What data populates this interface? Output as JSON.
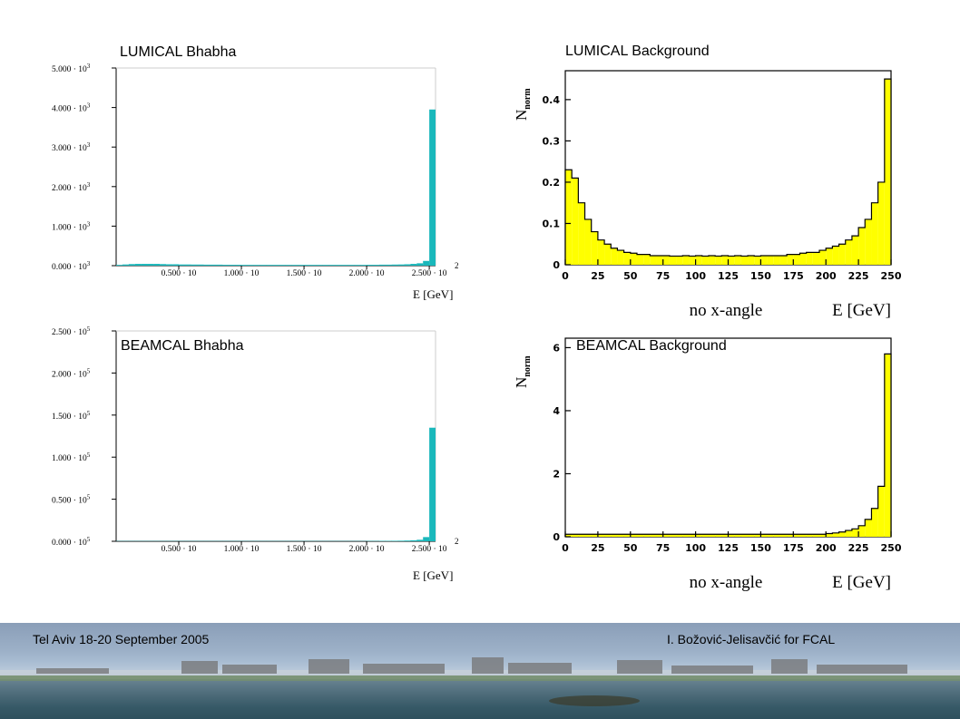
{
  "colors": {
    "cyan": "#1ab8bb",
    "yellow": "#ffff00"
  },
  "panels": {
    "lumical_bhabha": {
      "title": "LUMICAL Bhabha",
      "xunit": "E [GeV]"
    },
    "lumical_background": {
      "title": "LUMICAL Background"
    },
    "beamcal_bhabha": {
      "title": "BEAMCAL Bhabha",
      "xunit": "E [GeV]"
    },
    "beamcal_background": {
      "title": "BEAMCAL Background"
    }
  },
  "footer": {
    "left": "Tel Aviv 18-20 September 2005",
    "right": "I. Božović-Jelisavčić for FCAL"
  },
  "chart_data": [
    {
      "id": "lumical_bhabha",
      "type": "bar",
      "title": "LUMICAL Bhabha",
      "xlabel": "E [GeV]",
      "ylabel": "",
      "ylim": [
        0,
        5000
      ],
      "yticks": [
        0,
        1000,
        2000,
        3000,
        4000,
        5000
      ],
      "ytick_labels": [
        "0.000 · 10",
        "1.000 · 10",
        "2.000 · 10",
        "3.000 · 10",
        "4.000 · 10",
        "5.000 · 10"
      ],
      "ytick_exp": "3",
      "xlim": [
        0,
        255
      ],
      "xticks": [
        50,
        100,
        150,
        200,
        250
      ],
      "xtick_labels": [
        "0.500 · 10",
        "1.000 · 10",
        "1.500 · 10",
        "2.000 · 10",
        "2.500 · 10"
      ],
      "xtick_exp": "2",
      "bin_width": 5,
      "x": [
        0,
        5,
        10,
        15,
        20,
        25,
        30,
        35,
        40,
        45,
        50,
        55,
        60,
        65,
        70,
        75,
        80,
        85,
        90,
        95,
        100,
        105,
        110,
        115,
        120,
        125,
        130,
        135,
        140,
        145,
        150,
        155,
        160,
        165,
        170,
        175,
        180,
        185,
        190,
        195,
        200,
        205,
        210,
        215,
        220,
        225,
        230,
        235,
        240,
        245,
        250
      ],
      "values": [
        20,
        30,
        40,
        45,
        45,
        45,
        45,
        40,
        35,
        35,
        30,
        30,
        28,
        28,
        25,
        25,
        25,
        22,
        22,
        22,
        20,
        20,
        20,
        20,
        20,
        20,
        20,
        20,
        20,
        20,
        20,
        20,
        20,
        20,
        20,
        20,
        20,
        20,
        20,
        20,
        22,
        22,
        25,
        25,
        28,
        30,
        35,
        45,
        60,
        120,
        3950
      ]
    },
    {
      "id": "lumical_background",
      "type": "bar",
      "title": "LUMICAL Background",
      "ylabel": "N",
      "ylabel_sub": "norm",
      "xlabel": "E [GeV]",
      "annotation": "no x-angle",
      "ylim": [
        0,
        0.47
      ],
      "yticks": [
        0,
        0.1,
        0.2,
        0.3,
        0.4
      ],
      "ytick_labels": [
        "0",
        "0.1",
        "0.2",
        "0.3",
        "0.4"
      ],
      "xlim": [
        0,
        250
      ],
      "xticks": [
        0,
        25,
        50,
        75,
        100,
        125,
        150,
        175,
        200,
        225,
        250
      ],
      "xtick_labels": [
        "0",
        "25",
        "50",
        "75",
        "100",
        "125",
        "150",
        "175",
        "200",
        "225",
        "250"
      ],
      "bin_width": 5,
      "x": [
        0,
        5,
        10,
        15,
        20,
        25,
        30,
        35,
        40,
        45,
        50,
        55,
        60,
        65,
        70,
        75,
        80,
        85,
        90,
        95,
        100,
        105,
        110,
        115,
        120,
        125,
        130,
        135,
        140,
        145,
        150,
        155,
        160,
        165,
        170,
        175,
        180,
        185,
        190,
        195,
        200,
        205,
        210,
        215,
        220,
        225,
        230,
        235,
        240,
        245
      ],
      "values": [
        0.23,
        0.21,
        0.15,
        0.11,
        0.08,
        0.06,
        0.05,
        0.04,
        0.035,
        0.03,
        0.028,
        0.025,
        0.025,
        0.022,
        0.022,
        0.022,
        0.021,
        0.021,
        0.022,
        0.021,
        0.022,
        0.021,
        0.022,
        0.021,
        0.022,
        0.021,
        0.022,
        0.021,
        0.022,
        0.021,
        0.022,
        0.022,
        0.022,
        0.022,
        0.025,
        0.025,
        0.028,
        0.03,
        0.03,
        0.035,
        0.04,
        0.045,
        0.05,
        0.06,
        0.07,
        0.09,
        0.11,
        0.15,
        0.2,
        0.45
      ]
    },
    {
      "id": "beamcal_bhabha",
      "type": "bar",
      "title": "BEAMCAL Bhabha",
      "xlabel": "E [GeV]",
      "ylabel": "",
      "ylim": [
        0,
        250000
      ],
      "yticks": [
        0,
        50000,
        100000,
        150000,
        200000,
        250000
      ],
      "ytick_labels": [
        "0.000 · 10",
        "0.500 · 10",
        "1.000 · 10",
        "1.500 · 10",
        "2.000 · 10",
        "2.500 · 10"
      ],
      "ytick_exp": "5",
      "xlim": [
        0,
        255
      ],
      "xticks": [
        50,
        100,
        150,
        200,
        250
      ],
      "xtick_labels": [
        "0.500 · 10",
        "1.000 · 10",
        "1.500 · 10",
        "2.000 · 10",
        "2.500 · 10"
      ],
      "xtick_exp": "2",
      "bin_width": 5,
      "x": [
        0,
        5,
        10,
        15,
        20,
        25,
        30,
        35,
        40,
        45,
        50,
        55,
        60,
        65,
        70,
        75,
        80,
        85,
        90,
        95,
        100,
        105,
        110,
        115,
        120,
        125,
        130,
        135,
        140,
        145,
        150,
        155,
        160,
        165,
        170,
        175,
        180,
        185,
        190,
        195,
        200,
        205,
        210,
        215,
        220,
        225,
        230,
        235,
        240,
        245,
        250
      ],
      "values": [
        300,
        300,
        300,
        300,
        300,
        300,
        300,
        300,
        300,
        300,
        300,
        300,
        300,
        300,
        300,
        300,
        300,
        300,
        300,
        300,
        300,
        300,
        300,
        300,
        300,
        300,
        300,
        300,
        300,
        300,
        300,
        300,
        300,
        300,
        300,
        300,
        300,
        300,
        300,
        300,
        400,
        400,
        500,
        500,
        600,
        700,
        900,
        1200,
        1800,
        5000,
        135000
      ]
    },
    {
      "id": "beamcal_background",
      "type": "bar",
      "title": "BEAMCAL Background",
      "ylabel": "N",
      "ylabel_sub": "norm",
      "xlabel": "E [GeV]",
      "annotation": "no x-angle",
      "ylim": [
        0,
        6.3
      ],
      "yticks": [
        0,
        2,
        4,
        6
      ],
      "ytick_labels": [
        "0",
        "2",
        "4",
        "6"
      ],
      "xlim": [
        0,
        250
      ],
      "xticks": [
        0,
        25,
        50,
        75,
        100,
        125,
        150,
        175,
        200,
        225,
        250
      ],
      "xtick_labels": [
        "0",
        "25",
        "50",
        "75",
        "100",
        "125",
        "150",
        "175",
        "200",
        "225",
        "250"
      ],
      "bin_width": 5,
      "x": [
        0,
        5,
        10,
        15,
        20,
        25,
        30,
        35,
        40,
        45,
        50,
        55,
        60,
        65,
        70,
        75,
        80,
        85,
        90,
        95,
        100,
        105,
        110,
        115,
        120,
        125,
        130,
        135,
        140,
        145,
        150,
        155,
        160,
        165,
        170,
        175,
        180,
        185,
        190,
        195,
        200,
        205,
        210,
        215,
        220,
        225,
        230,
        235,
        240,
        245
      ],
      "values": [
        0.08,
        0.08,
        0.08,
        0.08,
        0.08,
        0.08,
        0.08,
        0.08,
        0.08,
        0.08,
        0.08,
        0.08,
        0.08,
        0.08,
        0.08,
        0.08,
        0.08,
        0.08,
        0.08,
        0.08,
        0.08,
        0.08,
        0.08,
        0.08,
        0.08,
        0.08,
        0.08,
        0.08,
        0.08,
        0.08,
        0.08,
        0.08,
        0.08,
        0.08,
        0.08,
        0.08,
        0.08,
        0.08,
        0.08,
        0.08,
        0.1,
        0.12,
        0.15,
        0.2,
        0.25,
        0.35,
        0.55,
        0.9,
        1.6,
        5.8
      ]
    }
  ]
}
